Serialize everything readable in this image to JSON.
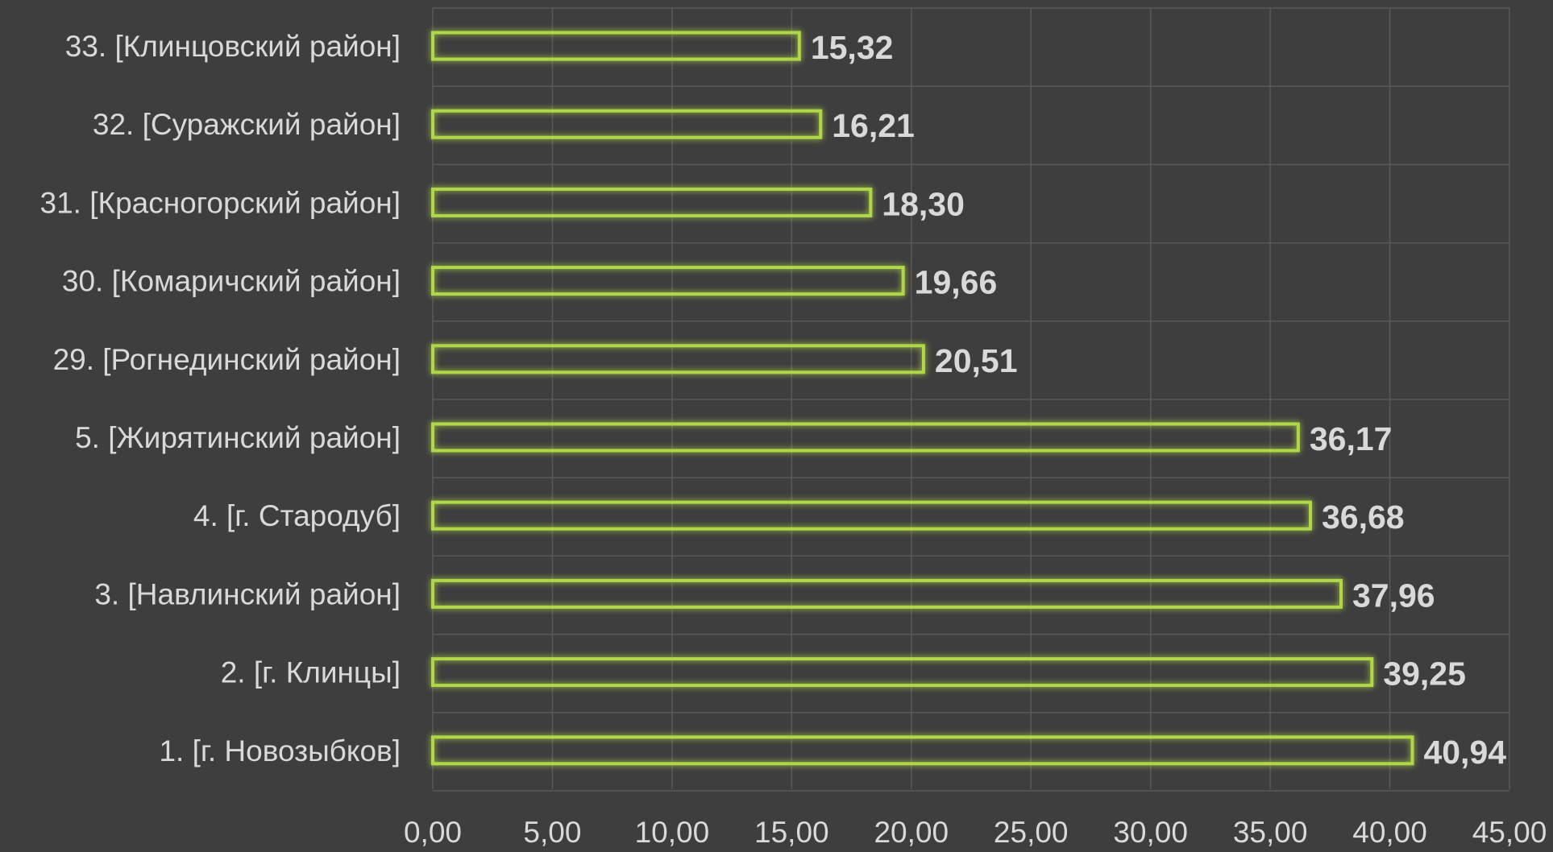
{
  "colors": {
    "background": "#3e3e3e",
    "bar_outline": "#9bc43c",
    "bar_glow": "#b6e04a",
    "gridline": "#595959",
    "label_text": "#d9d9d9"
  },
  "chart_data": {
    "type": "bar",
    "orientation": "horizontal",
    "title": "",
    "xlabel": "",
    "ylabel": "",
    "xlim": [
      0,
      45
    ],
    "x_ticks": [
      "0,00",
      "5,00",
      "10,00",
      "15,00",
      "20,00",
      "25,00",
      "30,00",
      "35,00",
      "40,00",
      "45,00"
    ],
    "x_tick_values": [
      0,
      5,
      10,
      15,
      20,
      25,
      30,
      35,
      40,
      45
    ],
    "grid": true,
    "legend": "none",
    "bar_style": "outline-with-glow",
    "categories": [
      "33. [Клинцовский район]",
      "32. [Суражский район]",
      "31. [Красногорский район]",
      "30. [Комаричский район]",
      "29. [Рогнединский район]",
      "5. [Жирятинский район]",
      "4. [г. Стародуб]",
      "3. [Навлинский район]",
      "2. [г. Клинцы]",
      "1. [г. Новозыбков]"
    ],
    "values": [
      15.32,
      16.21,
      18.3,
      19.66,
      20.51,
      36.17,
      36.68,
      37.96,
      39.25,
      40.94
    ],
    "value_labels": [
      "15,32",
      "16,21",
      "18,30",
      "19,66",
      "20,51",
      "36,17",
      "36,68",
      "37,96",
      "39,25",
      "40,94"
    ]
  }
}
